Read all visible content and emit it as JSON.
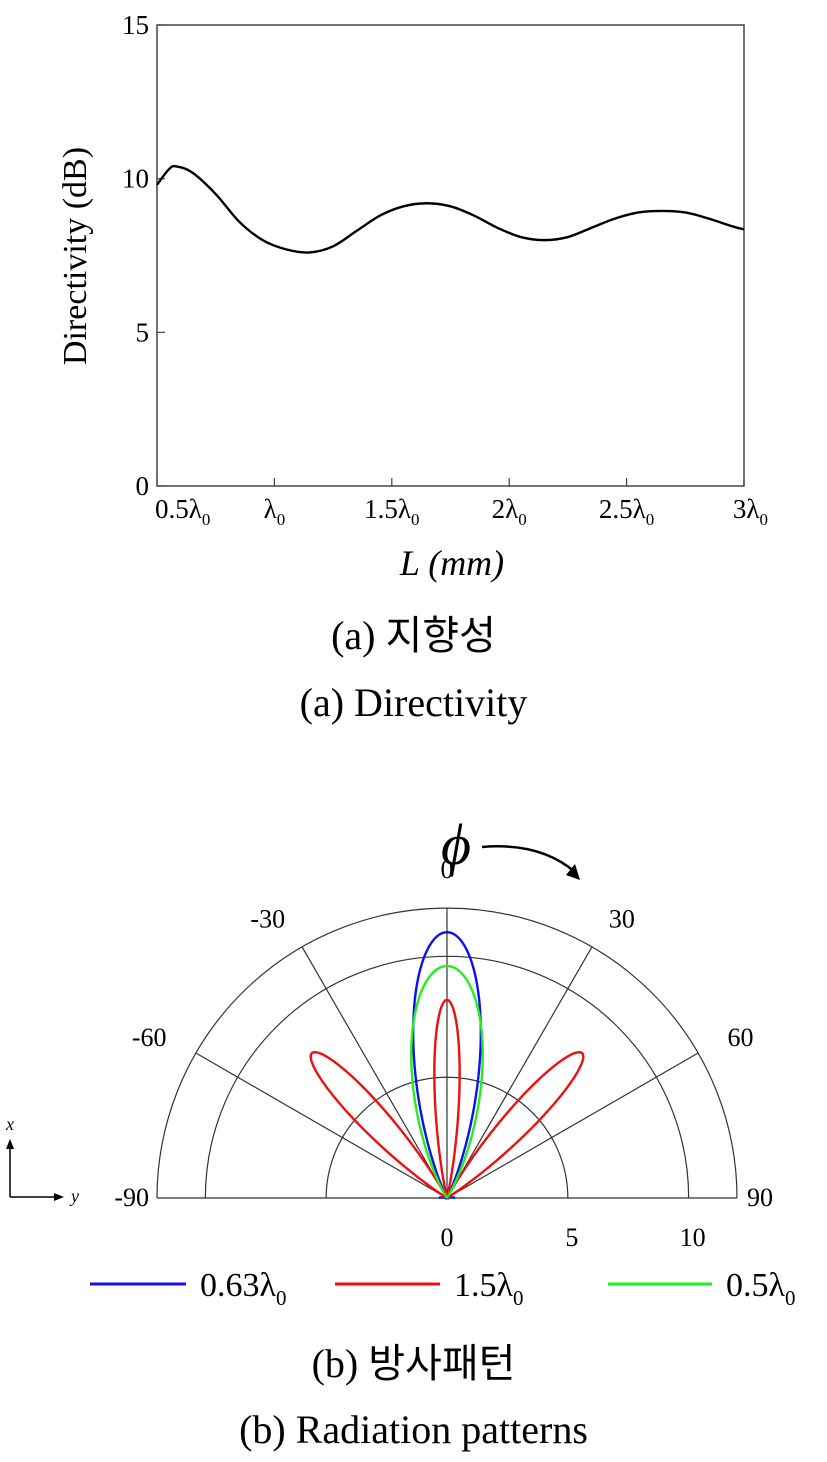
{
  "figure_a": {
    "caption_ko": "(a)  지향성",
    "caption_en": "(a)  Directivity"
  },
  "figure_b": {
    "caption_ko": "(b)  방사패턴",
    "caption_en": "(b)  Radiation  patterns",
    "phi_symbol": "ϕ",
    "axis_x_label": "x",
    "axis_y_label": "y"
  },
  "chart_data": [
    {
      "type": "line",
      "xlabel": "L (mm)",
      "ylabel": "Directivity (dB)",
      "xlim": [
        0.5,
        3.0
      ],
      "ylim": [
        0,
        15
      ],
      "x_tick_values": [
        0.5,
        1.0,
        1.5,
        2.0,
        2.5,
        3.0
      ],
      "x_tick_labels": [
        {
          "main": "0.5λ",
          "sub": "0"
        },
        {
          "main": "λ",
          "sub": "0"
        },
        {
          "main": "1.5λ",
          "sub": "0"
        },
        {
          "main": "2λ",
          "sub": "0"
        },
        {
          "main": "2.5λ",
          "sub": "0"
        },
        {
          "main": "3λ",
          "sub": "0"
        }
      ],
      "y_ticks": [
        0,
        5,
        10,
        15
      ],
      "color": "#000000",
      "series": [
        {
          "x": [
            0.5,
            0.55,
            0.58,
            0.65,
            0.75,
            0.85,
            0.95,
            1.05,
            1.15,
            1.25,
            1.35,
            1.45,
            1.55,
            1.65,
            1.75,
            1.85,
            1.95,
            2.05,
            2.15,
            2.25,
            2.35,
            2.45,
            2.55,
            2.65,
            2.75,
            2.85,
            2.95,
            3.0
          ],
          "y": [
            9.8,
            10.3,
            10.4,
            10.2,
            9.5,
            8.6,
            8.0,
            7.7,
            7.6,
            7.8,
            8.3,
            8.8,
            9.1,
            9.2,
            9.1,
            8.8,
            8.4,
            8.1,
            8.0,
            8.1,
            8.4,
            8.7,
            8.9,
            8.95,
            8.9,
            8.7,
            8.45,
            8.35
          ]
        }
      ]
    },
    {
      "type": "polar",
      "angle_range_deg": [
        -90,
        90
      ],
      "angle_ticks": [
        -90,
        -60,
        -30,
        0,
        30,
        60,
        90
      ],
      "radial_ticks": [
        0,
        5,
        10
      ],
      "rmax": 12,
      "legend_position": "bottom",
      "series": [
        {
          "name_main": "0.63λ",
          "name_sub": "0",
          "color": "#1010ee",
          "lobes": [
            {
              "center_deg": 0,
              "peak": 11,
              "half_width_deg": 14,
              "power": 1.0
            }
          ],
          "sidelobes": [
            {
              "center_deg": -88,
              "peak": 0.3
            },
            {
              "center_deg": 88,
              "peak": 0.3
            }
          ]
        },
        {
          "name_main": "1.5λ",
          "name_sub": "0",
          "color": "#ee1010",
          "lobes": [
            {
              "center_deg": 0,
              "peak": 8.2,
              "half_width_deg": 7,
              "power": 1.0
            },
            {
              "center_deg": -43,
              "peak": 8.2,
              "half_width_deg": 8,
              "power": 1.0
            },
            {
              "center_deg": 43,
              "peak": 8.2,
              "half_width_deg": 8,
              "power": 1.0
            }
          ]
        },
        {
          "name_main": "0.5λ",
          "name_sub": "0",
          "color": "#22ee22",
          "lobes": [
            {
              "center_deg": 0,
              "peak": 9.6,
              "half_width_deg": 17,
              "power": 1.0
            }
          ]
        }
      ]
    }
  ]
}
